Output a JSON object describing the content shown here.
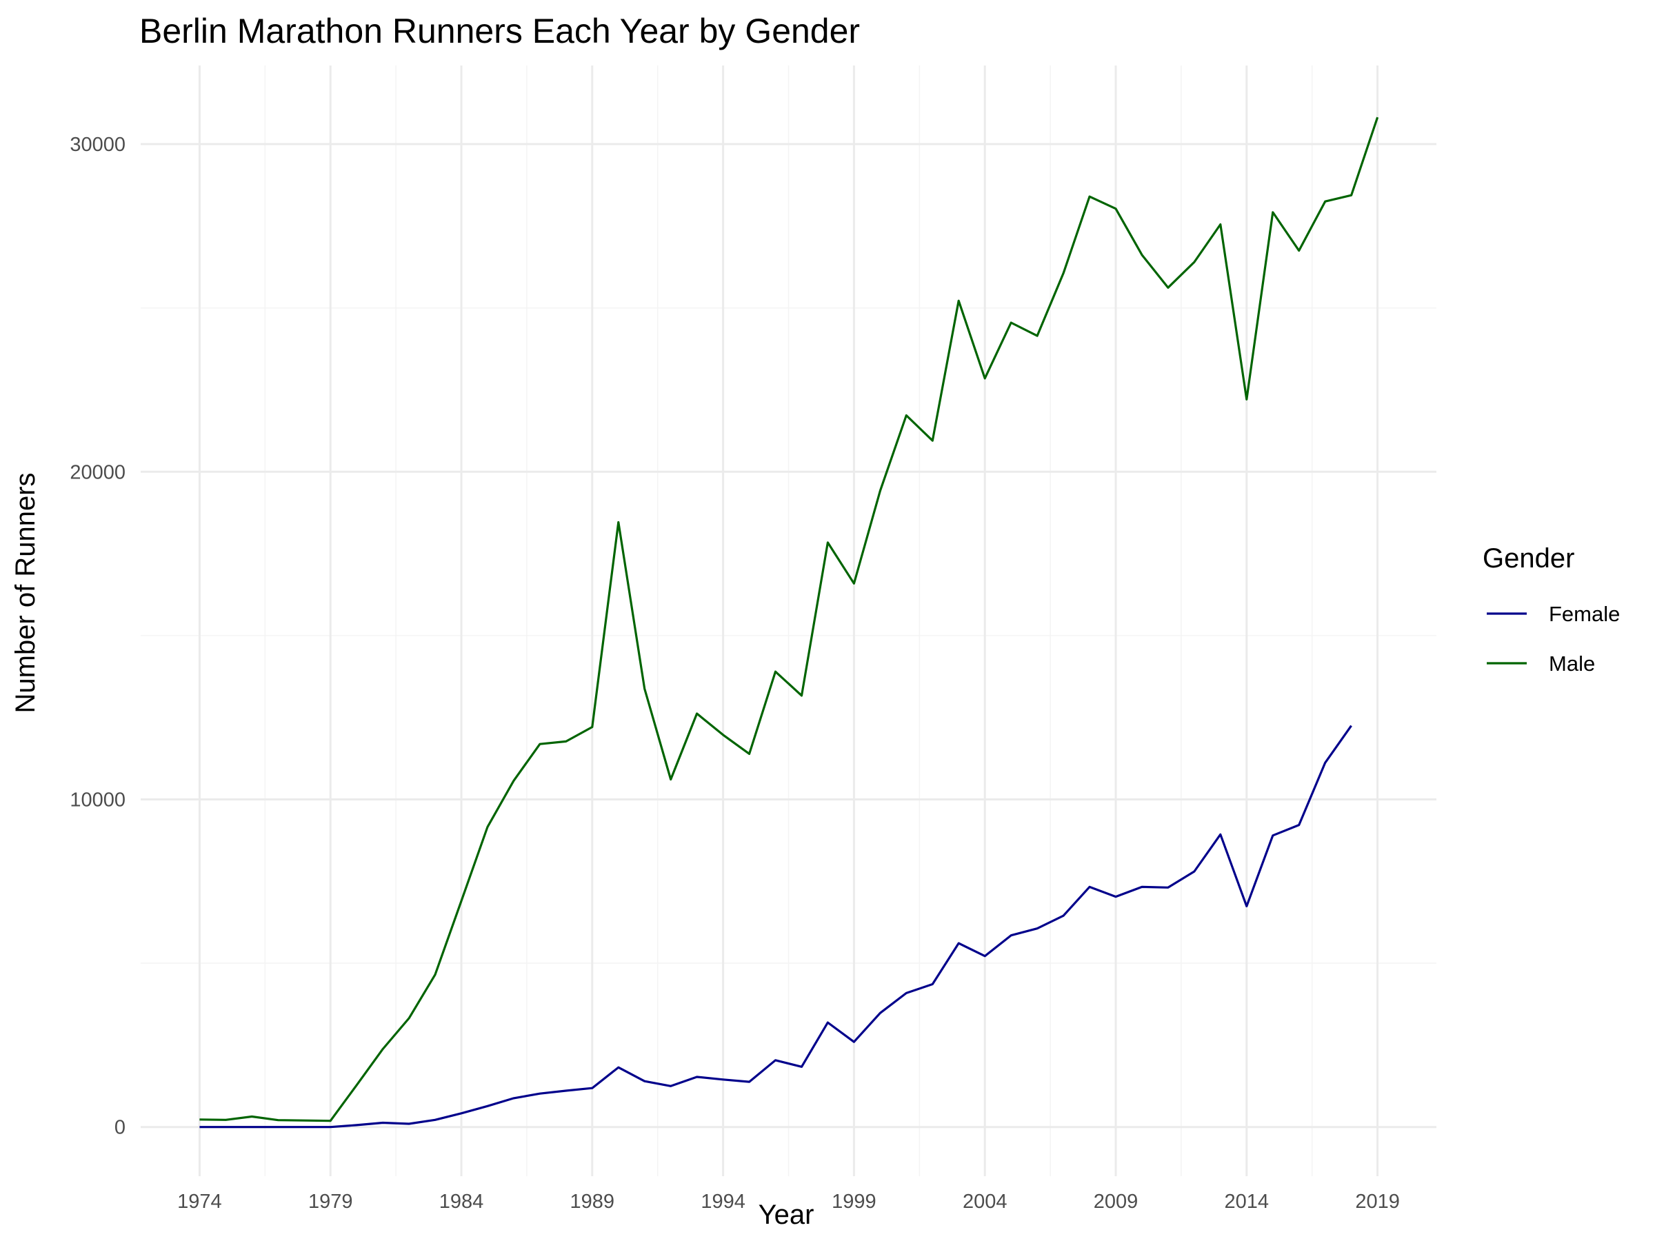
{
  "chart_data": {
    "type": "line",
    "title": "Berlin Marathon Runners Each Year by Gender",
    "xlabel": "Year",
    "ylabel": "Number of Runners",
    "xlim": [
      1971.75,
      2021.25
    ],
    "ylim": [
      -1500,
      32400
    ],
    "x_ticks": [
      1974,
      1979,
      1984,
      1989,
      1994,
      1999,
      2004,
      2009,
      2014,
      2019
    ],
    "x_tick_labels": [
      "1974",
      "1979",
      "1984",
      "1989",
      "1994",
      "1999",
      "2004",
      "2009",
      "2014",
      "2019"
    ],
    "y_ticks": [
      0,
      10000,
      20000,
      30000
    ],
    "y_tick_labels": [
      "0",
      "10000",
      "20000",
      "30000"
    ],
    "grid": true,
    "legend": {
      "title": "Gender",
      "position": "right"
    },
    "series": [
      {
        "name": "Female",
        "color": "#00008b",
        "x": [
          1974,
          1975,
          1976,
          1977,
          1978,
          1979,
          1980,
          1981,
          1982,
          1983,
          1984,
          1985,
          1986,
          1987,
          1988,
          1989,
          1990,
          1991,
          1992,
          1993,
          1994,
          1995,
          1996,
          1997,
          1998,
          1999,
          2000,
          2001,
          2002,
          2003,
          2004,
          2005,
          2006,
          2007,
          2008,
          2009,
          2010,
          2011,
          2012,
          2013,
          2014,
          2015,
          2016,
          2017,
          2018
        ],
        "values": [
          0,
          0,
          0,
          0,
          0,
          0,
          60,
          130,
          100,
          220,
          420,
          640,
          880,
          1020,
          1110,
          1190,
          1820,
          1400,
          1250,
          1530,
          1450,
          1380,
          2040,
          1840,
          3190,
          2600,
          3480,
          4090,
          4360,
          5610,
          5220,
          5850,
          6060,
          6450,
          7330,
          7030,
          7330,
          7310,
          7800,
          8930,
          6740,
          8900,
          9220,
          11120,
          12250
        ]
      },
      {
        "name": "Male",
        "color": "#006400",
        "x": [
          1974,
          1975,
          1976,
          1977,
          1978,
          1979,
          1980,
          1981,
          1982,
          1983,
          1984,
          1985,
          1986,
          1987,
          1988,
          1989,
          1990,
          1991,
          1992,
          1993,
          1994,
          1995,
          1996,
          1997,
          1998,
          1999,
          2000,
          2001,
          2002,
          2003,
          2004,
          2005,
          2006,
          2007,
          2008,
          2009,
          2010,
          2011,
          2012,
          2013,
          2014,
          2015,
          2016,
          2017,
          2018,
          2019
        ],
        "values": [
          230,
          220,
          320,
          210,
          200,
          190,
          1280,
          2380,
          3320,
          4650,
          6900,
          9160,
          10570,
          11690,
          11770,
          12210,
          18460,
          13380,
          10610,
          12620,
          11970,
          11390,
          13900,
          13170,
          17840,
          16590,
          19420,
          21720,
          20950,
          25220,
          22850,
          24550,
          24150,
          26060,
          28400,
          28030,
          26620,
          25620,
          26400,
          27550,
          22210,
          27920,
          26750,
          28250,
          28440,
          30820
        ]
      }
    ]
  }
}
